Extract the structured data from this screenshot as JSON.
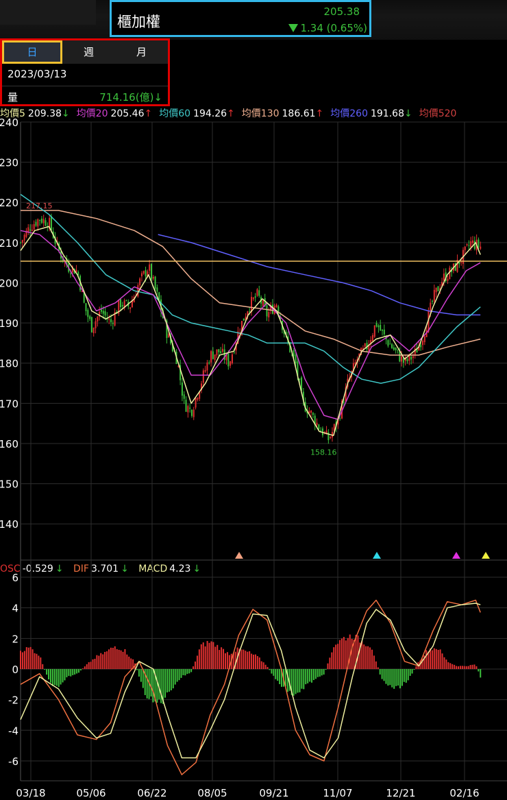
{
  "header": {
    "name": "櫃加權",
    "price": "205.38",
    "change": "1.34 (0.65%)"
  },
  "panel": {
    "tabs": [
      "日",
      "週",
      "月"
    ],
    "active_tab": "日",
    "date": "2023/03/13",
    "volume_label": "量",
    "volume_value": "714.16(億)↓"
  },
  "ma_legend": [
    {
      "name": "均價5",
      "value": "209.38",
      "arrow": "↓",
      "color": "#f0f0a0",
      "dir": "dn"
    },
    {
      "name": "均價20",
      "value": "205.46",
      "arrow": "↑",
      "color": "#d040d0",
      "dir": "up"
    },
    {
      "name": "均價60",
      "value": "194.26",
      "arrow": "↑",
      "color": "#40c8c8",
      "dir": "up"
    },
    {
      "name": "均價130",
      "value": "186.61",
      "arrow": "↑",
      "color": "#f0b090",
      "dir": "up"
    },
    {
      "name": "均價260",
      "value": "191.68",
      "arrow": "↓",
      "color": "#6060ff",
      "dir": "dn"
    },
    {
      "name": "均價520",
      "value": "",
      "arrow": "",
      "color": "#d04040",
      "dir": "up"
    }
  ],
  "macd_legend": {
    "osc_label": "OSC",
    "osc_value": "-0.529",
    "osc_arrow": "↓",
    "dif_label": "DIF",
    "dif_value": "3.701",
    "dif_arrow": "↓",
    "macd_label": "MACD",
    "macd_value": "4.23",
    "macd_arrow": "↓"
  },
  "colors": {
    "up": "#e03030",
    "down": "#3cc13c",
    "ma5": "#f0f0a0",
    "ma20": "#d040d0",
    "ma60": "#40c8c8",
    "ma130": "#f0b090",
    "ma260": "#6060ff",
    "dif": "#f07040",
    "macd": "#f0f0a0",
    "price_line": "#f0c060",
    "grid": "#2e2e2e",
    "axis_text": "#ffffff"
  },
  "chart_data": [
    {
      "type": "candlestick",
      "y_ticks": [
        140,
        150,
        160,
        170,
        180,
        190,
        200,
        210,
        220,
        230,
        240
      ],
      "ylim": [
        131,
        240
      ],
      "x_tick_labels": [
        "03/18",
        "05/06",
        "06/22",
        "08/05",
        "09/21",
        "11/07",
        "12/21",
        "02/16"
      ],
      "current_price": 205.38,
      "high_label": "217.15",
      "low_label": "158.16",
      "close_path": [
        [
          0,
          210
        ],
        [
          0.02,
          214
        ],
        [
          0.04,
          216
        ],
        [
          0.06,
          215
        ],
        [
          0.08,
          208
        ],
        [
          0.1,
          204
        ],
        [
          0.12,
          203
        ],
        [
          0.135,
          194
        ],
        [
          0.15,
          189
        ],
        [
          0.17,
          193
        ],
        [
          0.19,
          190
        ],
        [
          0.21,
          195
        ],
        [
          0.23,
          194
        ],
        [
          0.25,
          200
        ],
        [
          0.27,
          204
        ],
        [
          0.29,
          196
        ],
        [
          0.31,
          187
        ],
        [
          0.33,
          181
        ],
        [
          0.345,
          170
        ],
        [
          0.36,
          168
        ],
        [
          0.38,
          175
        ],
        [
          0.4,
          182
        ],
        [
          0.42,
          183
        ],
        [
          0.44,
          180
        ],
        [
          0.46,
          188
        ],
        [
          0.48,
          194
        ],
        [
          0.5,
          197
        ],
        [
          0.52,
          192
        ],
        [
          0.54,
          195
        ],
        [
          0.56,
          186
        ],
        [
          0.58,
          180
        ],
        [
          0.595,
          170
        ],
        [
          0.61,
          168
        ],
        [
          0.63,
          164
        ],
        [
          0.65,
          161
        ],
        [
          0.67,
          166
        ],
        [
          0.69,
          175
        ],
        [
          0.71,
          181
        ],
        [
          0.73,
          184
        ],
        [
          0.75,
          190
        ],
        [
          0.77,
          186
        ],
        [
          0.79,
          183
        ],
        [
          0.81,
          180
        ],
        [
          0.83,
          182
        ],
        [
          0.85,
          187
        ],
        [
          0.87,
          196
        ],
        [
          0.89,
          201
        ],
        [
          0.91,
          203
        ],
        [
          0.93,
          206
        ],
        [
          0.95,
          210
        ],
        [
          0.97,
          209
        ]
      ],
      "ma5": [
        [
          0,
          208
        ],
        [
          0.03,
          213
        ],
        [
          0.06,
          214
        ],
        [
          0.09,
          207
        ],
        [
          0.12,
          202
        ],
        [
          0.15,
          193
        ],
        [
          0.18,
          191
        ],
        [
          0.21,
          193
        ],
        [
          0.24,
          196
        ],
        [
          0.27,
          202
        ],
        [
          0.3,
          193
        ],
        [
          0.33,
          181
        ],
        [
          0.36,
          170
        ],
        [
          0.39,
          175
        ],
        [
          0.42,
          182
        ],
        [
          0.45,
          183
        ],
        [
          0.48,
          192
        ],
        [
          0.51,
          196
        ],
        [
          0.54,
          193
        ],
        [
          0.57,
          184
        ],
        [
          0.6,
          169
        ],
        [
          0.63,
          163
        ],
        [
          0.66,
          162
        ],
        [
          0.69,
          175
        ],
        [
          0.72,
          183
        ],
        [
          0.75,
          186
        ],
        [
          0.78,
          187
        ],
        [
          0.81,
          181
        ],
        [
          0.84,
          184
        ],
        [
          0.87,
          194
        ],
        [
          0.9,
          202
        ],
        [
          0.93,
          206
        ],
        [
          0.96,
          210
        ],
        [
          0.97,
          207
        ]
      ],
      "ma20": [
        [
          0,
          213
        ],
        [
          0.04,
          212
        ],
        [
          0.08,
          208
        ],
        [
          0.12,
          200
        ],
        [
          0.16,
          193
        ],
        [
          0.2,
          195
        ],
        [
          0.24,
          199
        ],
        [
          0.28,
          197
        ],
        [
          0.32,
          187
        ],
        [
          0.36,
          177
        ],
        [
          0.4,
          177
        ],
        [
          0.44,
          183
        ],
        [
          0.48,
          190
        ],
        [
          0.52,
          195
        ],
        [
          0.56,
          190
        ],
        [
          0.6,
          176
        ],
        [
          0.64,
          167
        ],
        [
          0.67,
          166
        ],
        [
          0.7,
          174
        ],
        [
          0.74,
          184
        ],
        [
          0.78,
          187
        ],
        [
          0.82,
          183
        ],
        [
          0.86,
          188
        ],
        [
          0.9,
          196
        ],
        [
          0.94,
          203
        ],
        [
          0.97,
          205
        ]
      ],
      "ma60": [
        [
          0,
          222
        ],
        [
          0.06,
          217
        ],
        [
          0.12,
          210
        ],
        [
          0.18,
          202
        ],
        [
          0.24,
          198
        ],
        [
          0.28,
          197
        ],
        [
          0.32,
          192
        ],
        [
          0.36,
          190
        ],
        [
          0.4,
          189
        ],
        [
          0.44,
          188
        ],
        [
          0.48,
          187
        ],
        [
          0.52,
          185
        ],
        [
          0.56,
          185
        ],
        [
          0.6,
          185
        ],
        [
          0.64,
          183
        ],
        [
          0.68,
          179
        ],
        [
          0.72,
          176
        ],
        [
          0.76,
          175
        ],
        [
          0.8,
          176
        ],
        [
          0.84,
          179
        ],
        [
          0.88,
          184
        ],
        [
          0.92,
          189
        ],
        [
          0.97,
          194
        ]
      ],
      "ma130": [
        [
          0,
          218
        ],
        [
          0.08,
          218
        ],
        [
          0.16,
          216
        ],
        [
          0.24,
          213
        ],
        [
          0.3,
          209
        ],
        [
          0.36,
          201
        ],
        [
          0.42,
          195
        ],
        [
          0.48,
          194
        ],
        [
          0.54,
          193
        ],
        [
          0.6,
          188
        ],
        [
          0.66,
          186
        ],
        [
          0.72,
          183
        ],
        [
          0.78,
          182
        ],
        [
          0.84,
          182
        ],
        [
          0.9,
          184
        ],
        [
          0.97,
          186
        ]
      ],
      "ma260": [
        [
          0.29,
          212
        ],
        [
          0.36,
          210
        ],
        [
          0.44,
          207
        ],
        [
          0.52,
          204
        ],
        [
          0.6,
          202
        ],
        [
          0.68,
          200
        ],
        [
          0.74,
          198
        ],
        [
          0.8,
          195
        ],
        [
          0.86,
          193
        ],
        [
          0.92,
          192
        ],
        [
          0.97,
          192
        ]
      ]
    },
    {
      "type": "macd",
      "y_ticks": [
        -6,
        -4,
        -2,
        0,
        2,
        4,
        6
      ],
      "ylim": [
        -7.3,
        6
      ],
      "dif": [
        [
          0,
          -1
        ],
        [
          0.04,
          -0.3
        ],
        [
          0.08,
          -2
        ],
        [
          0.12,
          -4.3
        ],
        [
          0.16,
          -4.6
        ],
        [
          0.19,
          -3.5
        ],
        [
          0.22,
          -0.5
        ],
        [
          0.25,
          0.5
        ],
        [
          0.28,
          -1.5
        ],
        [
          0.31,
          -5
        ],
        [
          0.34,
          -6.9
        ],
        [
          0.37,
          -6.1
        ],
        [
          0.4,
          -3
        ],
        [
          0.43,
          -1
        ],
        [
          0.46,
          2.2
        ],
        [
          0.49,
          3.9
        ],
        [
          0.52,
          3.2
        ],
        [
          0.55,
          0
        ],
        [
          0.58,
          -4
        ],
        [
          0.61,
          -5.6
        ],
        [
          0.64,
          -6
        ],
        [
          0.67,
          -2.5
        ],
        [
          0.7,
          1.5
        ],
        [
          0.73,
          3.8
        ],
        [
          0.75,
          4.5
        ],
        [
          0.78,
          3
        ],
        [
          0.81,
          0.5
        ],
        [
          0.84,
          0.2
        ],
        [
          0.87,
          2.5
        ],
        [
          0.9,
          4.4
        ],
        [
          0.93,
          4.2
        ],
        [
          0.96,
          4.5
        ],
        [
          0.97,
          3.7
        ]
      ],
      "macd": [
        [
          0,
          -3.3
        ],
        [
          0.04,
          -0.5
        ],
        [
          0.08,
          -1.3
        ],
        [
          0.12,
          -3.2
        ],
        [
          0.16,
          -4.5
        ],
        [
          0.19,
          -4.2
        ],
        [
          0.22,
          -1.5
        ],
        [
          0.25,
          0.5
        ],
        [
          0.28,
          0
        ],
        [
          0.31,
          -3
        ],
        [
          0.34,
          -5.8
        ],
        [
          0.37,
          -5.8
        ],
        [
          0.4,
          -4
        ],
        [
          0.43,
          -2
        ],
        [
          0.46,
          1
        ],
        [
          0.49,
          3.6
        ],
        [
          0.52,
          3.5
        ],
        [
          0.55,
          1.2
        ],
        [
          0.58,
          -2.5
        ],
        [
          0.61,
          -5.3
        ],
        [
          0.64,
          -5.8
        ],
        [
          0.67,
          -4.5
        ],
        [
          0.7,
          -0.5
        ],
        [
          0.73,
          3
        ],
        [
          0.75,
          3.9
        ],
        [
          0.78,
          3.2
        ],
        [
          0.81,
          1.2
        ],
        [
          0.84,
          0.2
        ],
        [
          0.87,
          1.5
        ],
        [
          0.9,
          4
        ],
        [
          0.93,
          4.2
        ],
        [
          0.96,
          4.3
        ],
        [
          0.97,
          4.2
        ]
      ],
      "osc": [
        [
          0,
          1.2
        ],
        [
          0.02,
          1.4
        ],
        [
          0.04,
          0.9
        ],
        [
          0.06,
          -0.8
        ],
        [
          0.08,
          -1.3
        ],
        [
          0.1,
          -0.5
        ],
        [
          0.12,
          -0.3
        ],
        [
          0.14,
          0.3
        ],
        [
          0.16,
          0.8
        ],
        [
          0.18,
          1.1
        ],
        [
          0.2,
          1.5
        ],
        [
          0.22,
          1.2
        ],
        [
          0.24,
          0.5
        ],
        [
          0.26,
          -1.5
        ],
        [
          0.28,
          -2.2
        ],
        [
          0.3,
          -2.1
        ],
        [
          0.32,
          -1.2
        ],
        [
          0.34,
          -0.5
        ],
        [
          0.36,
          -0.2
        ],
        [
          0.38,
          1.5
        ],
        [
          0.4,
          1.8
        ],
        [
          0.42,
          1.4
        ],
        [
          0.44,
          1
        ],
        [
          0.46,
          1.3
        ],
        [
          0.48,
          1.1
        ],
        [
          0.5,
          0.8
        ],
        [
          0.52,
          0.2
        ],
        [
          0.54,
          -0.8
        ],
        [
          0.56,
          -1.3
        ],
        [
          0.58,
          -1.8
        ],
        [
          0.6,
          -1.1
        ],
        [
          0.62,
          -0.7
        ],
        [
          0.64,
          -0.4
        ],
        [
          0.66,
          1.5
        ],
        [
          0.68,
          2
        ],
        [
          0.7,
          2.2
        ],
        [
          0.72,
          1.8
        ],
        [
          0.74,
          1.5
        ],
        [
          0.76,
          -0.5
        ],
        [
          0.78,
          -1.2
        ],
        [
          0.8,
          -1.2
        ],
        [
          0.82,
          -0.6
        ],
        [
          0.84,
          0.5
        ],
        [
          0.86,
          1.3
        ],
        [
          0.88,
          1.4
        ],
        [
          0.9,
          0.5
        ],
        [
          0.92,
          0.2
        ],
        [
          0.94,
          0.2
        ],
        [
          0.96,
          0.3
        ],
        [
          0.97,
          -0.5
        ]
      ]
    }
  ]
}
